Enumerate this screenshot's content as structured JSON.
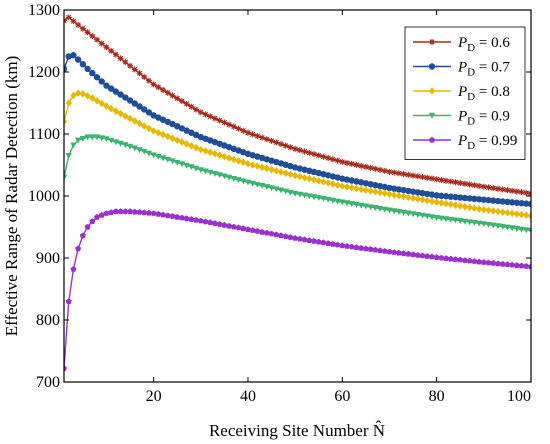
{
  "chart_data": {
    "type": "line",
    "title": "",
    "xlabel": "Receiving Site Number N̂",
    "ylabel": "Effective Range of Radar Detection  (km)",
    "xlim": [
      1,
      100
    ],
    "ylim": [
      700,
      1300
    ],
    "xticks": [
      20,
      40,
      60,
      80,
      100
    ],
    "yticks": [
      700,
      800,
      900,
      1000,
      1100,
      1200,
      1300
    ],
    "grid": false,
    "legend_position": "top-right",
    "series": [
      {
        "name": "P_D = 0.6",
        "legend_main": "P",
        "legend_sub": "D",
        "legend_rest": " = 0.6",
        "color": "#a52a1c",
        "marker": "star",
        "x": [
          1,
          2,
          5,
          10,
          20,
          30,
          40,
          50,
          60,
          70,
          80,
          90,
          100
        ],
        "values": [
          1283,
          1288,
          1270,
          1240,
          1180,
          1135,
          1102,
          1076,
          1055,
          1039,
          1027,
          1015,
          1004
        ]
      },
      {
        "name": "P_D = 0.7",
        "legend_main": "P",
        "legend_sub": "D",
        "legend_rest": " = 0.7",
        "color": "#1f4e99",
        "marker": "circle",
        "x": [
          1,
          2,
          3,
          4,
          6,
          10,
          20,
          30,
          40,
          50,
          60,
          70,
          80,
          90,
          100
        ],
        "values": [
          1205,
          1225,
          1227,
          1220,
          1205,
          1178,
          1130,
          1095,
          1068,
          1046,
          1028,
          1013,
          1001,
          994,
          987
        ]
      },
      {
        "name": "P_D = 0.8",
        "legend_main": "P",
        "legend_sub": "D",
        "legend_rest": " = 0.8",
        "color": "#e6b800",
        "marker": "diamond",
        "x": [
          1,
          2,
          3,
          4,
          5,
          7,
          10,
          20,
          30,
          40,
          50,
          60,
          70,
          80,
          90,
          100
        ],
        "values": [
          1120,
          1150,
          1162,
          1166,
          1165,
          1158,
          1145,
          1105,
          1075,
          1052,
          1033,
          1016,
          1003,
          990,
          978,
          968
        ]
      },
      {
        "name": "P_D = 0.9",
        "legend_main": "P",
        "legend_sub": "D",
        "legend_rest": " = 0.9",
        "color": "#3cb371",
        "marker": "triangle-down",
        "x": [
          1,
          2,
          3,
          4,
          6,
          8,
          10,
          15,
          20,
          30,
          40,
          50,
          60,
          70,
          80,
          90,
          100
        ],
        "values": [
          1030,
          1065,
          1082,
          1090,
          1095,
          1095,
          1092,
          1080,
          1066,
          1042,
          1022,
          1004,
          990,
          977,
          965,
          955,
          944
        ]
      },
      {
        "name": "P_D = 0.99",
        "legend_main": "P",
        "legend_sub": "D",
        "legend_rest": " = 0.99",
        "color": "#9932cc",
        "marker": "pentagon",
        "x": [
          1,
          2,
          3,
          4,
          5,
          6,
          7,
          8,
          10,
          12,
          15,
          20,
          30,
          40,
          50,
          60,
          70,
          80,
          90,
          100
        ],
        "values": [
          722,
          830,
          882,
          915,
          936,
          950,
          959,
          966,
          972,
          975,
          975,
          972,
          960,
          946,
          932,
          920,
          910,
          901,
          893,
          886
        ]
      }
    ]
  }
}
